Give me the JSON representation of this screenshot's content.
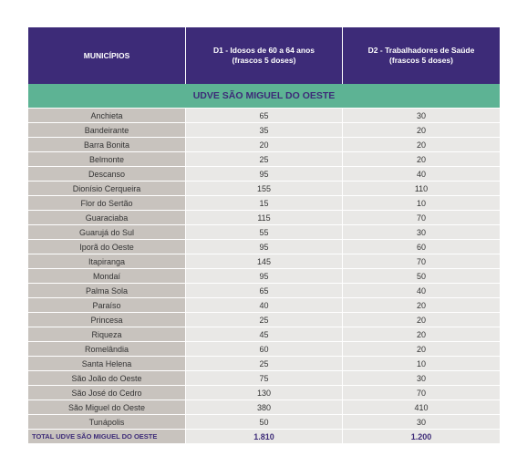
{
  "header": {
    "col1": "MUNICÍPIOS",
    "col2_line1": "D1 - Idosos de 60 a 64 anos",
    "col2_line2": "(frascos 5 doses)",
    "col3_line1": "D2 - Trabalhadores de Saúde",
    "col3_line2": "(frascos 5 doses)"
  },
  "section_title": "UDVE SÃO MIGUEL DO OESTE",
  "rows": [
    {
      "municipio": "Anchieta",
      "d1": "65",
      "d2": "30"
    },
    {
      "municipio": "Bandeirante",
      "d1": "35",
      "d2": "20"
    },
    {
      "municipio": "Barra Bonita",
      "d1": "20",
      "d2": "20"
    },
    {
      "municipio": "Belmonte",
      "d1": "25",
      "d2": "20"
    },
    {
      "municipio": "Descanso",
      "d1": "95",
      "d2": "40"
    },
    {
      "municipio": "Dionísio Cerqueira",
      "d1": "155",
      "d2": "110"
    },
    {
      "municipio": "Flor do Sertão",
      "d1": "15",
      "d2": "10"
    },
    {
      "municipio": "Guaraciaba",
      "d1": "115",
      "d2": "70"
    },
    {
      "municipio": "Guarujá do Sul",
      "d1": "55",
      "d2": "30"
    },
    {
      "municipio": "Iporã do Oeste",
      "d1": "95",
      "d2": "60"
    },
    {
      "municipio": "Itapiranga",
      "d1": "145",
      "d2": "70"
    },
    {
      "municipio": "Mondaí",
      "d1": "95",
      "d2": "50"
    },
    {
      "municipio": "Palma Sola",
      "d1": "65",
      "d2": "40"
    },
    {
      "municipio": "Paraíso",
      "d1": "40",
      "d2": "20"
    },
    {
      "municipio": "Princesa",
      "d1": "25",
      "d2": "20"
    },
    {
      "municipio": "Riqueza",
      "d1": "45",
      "d2": "20"
    },
    {
      "municipio": "Romelândia",
      "d1": "60",
      "d2": "20"
    },
    {
      "municipio": "Santa Helena",
      "d1": "25",
      "d2": "10"
    },
    {
      "municipio": "São João do Oeste",
      "d1": "75",
      "d2": "30"
    },
    {
      "municipio": "São José do Cedro",
      "d1": "130",
      "d2": "70"
    },
    {
      "municipio": "São Miguel do Oeste",
      "d1": "380",
      "d2": "410"
    },
    {
      "municipio": "Tunápolis",
      "d1": "50",
      "d2": "30"
    }
  ],
  "total": {
    "label": "TOTAL UDVE SÃO MIGUEL DO OESTE",
    "d1": "1.810",
    "d2": "1.200"
  }
}
